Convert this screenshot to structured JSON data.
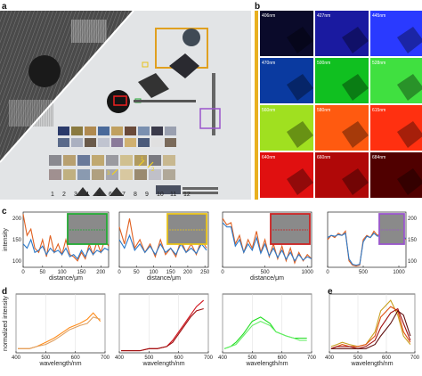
{
  "panel_labels": {
    "a": "a",
    "b": "b",
    "c": "c",
    "d": "d",
    "e": "e"
  },
  "panel_a": {
    "chart_numbers": [
      "1",
      "2",
      "3",
      "4",
      "5",
      "6",
      "7",
      "8",
      "9",
      "10",
      "11",
      "12"
    ],
    "arrow_labels": [
      "1",
      "2",
      "3"
    ]
  },
  "panel_b": {
    "wavelength_labels": [
      "406nm",
      "427nm",
      "445nm",
      "470nm",
      "500nm",
      "528nm",
      "560nm",
      "580nm",
      "615nm",
      "640nm",
      "660nm",
      "684nm"
    ],
    "tile_colors": [
      "#0a0a2a",
      "#1a1aa0",
      "#2a3aff",
      "#0a3aa0",
      "#10c020",
      "#40e040",
      "#a0e020",
      "#ff5a10",
      "#ff3010",
      "#e01010",
      "#b00808",
      "#500000"
    ]
  },
  "panel_c": {
    "ylabel": "intensity",
    "xlabel": "distance/μm",
    "plots": [
      {
        "border_color": "#22aa33",
        "xticks": [
          "0",
          "50",
          "100",
          "150",
          "200"
        ],
        "yticks": [
          "100",
          "150",
          "200"
        ],
        "show_ylabel": true
      },
      {
        "border_color": "#e8c21a",
        "xticks": [
          "0",
          "50",
          "100",
          "150",
          "200",
          "250"
        ],
        "yticks": [],
        "show_ylabel": false
      },
      {
        "border_color": "#cc2222",
        "xticks": [
          "0",
          "500",
          "1000"
        ],
        "yticks": [],
        "show_ylabel": false
      },
      {
        "border_color": "#9955cc",
        "xticks": [
          "0",
          "500",
          "1000"
        ],
        "yticks": [
          "100",
          "150",
          "200"
        ],
        "show_ylabel": false
      }
    ]
  },
  "panel_d": {
    "ylabel": "normalized intensity",
    "xlabel": "wavelength/nm",
    "plots": [
      {
        "color": "#ff8c1a",
        "xticks": [
          "400",
          "500",
          "600",
          "700"
        ],
        "show_ylabel": true
      },
      {
        "color": "#d0101a",
        "xticks": [
          "400",
          "500",
          "600",
          "700"
        ],
        "show_ylabel": false
      },
      {
        "color": "#22dd22",
        "xticks": [
          "400",
          "500",
          "600",
          "700"
        ],
        "show_ylabel": false
      }
    ]
  },
  "panel_e": {
    "xlabel": "wavelength/nm",
    "xticks": [
      "400",
      "500",
      "600",
      "700"
    ],
    "series_colors": [
      "#c8a020",
      "#e05010",
      "#a01010",
      "#601010"
    ]
  },
  "chart_data": [
    {
      "type": "line",
      "ylabel": "intensity",
      "xlabel": "distance/μm",
      "xlim": [
        0,
        220
      ],
      "ylim": [
        85,
        215
      ],
      "series": [
        {
          "color": "#e06020",
          "x": [
            0,
            10,
            20,
            30,
            40,
            50,
            60,
            70,
            80,
            90,
            100,
            110,
            120,
            130,
            140,
            150,
            160,
            170,
            180,
            190,
            200,
            210,
            220
          ],
          "values": [
            210,
            160,
            175,
            130,
            120,
            150,
            110,
            160,
            120,
            140,
            115,
            150,
            115,
            110,
            100,
            120,
            105,
            140,
            115,
            145,
            120,
            150,
            135
          ]
        },
        {
          "color": "#2a78c8",
          "x": [
            0,
            10,
            20,
            30,
            40,
            50,
            60,
            70,
            80,
            90,
            100,
            110,
            120,
            130,
            140,
            150,
            160,
            170,
            180,
            190,
            200,
            210,
            220
          ],
          "values": [
            140,
            130,
            150,
            120,
            125,
            135,
            115,
            130,
            120,
            125,
            115,
            130,
            110,
            115,
            105,
            125,
            110,
            130,
            115,
            125,
            120,
            130,
            125
          ]
        }
      ]
    },
    {
      "type": "line",
      "xlabel": "distance/μm",
      "xlim": [
        0,
        260
      ],
      "ylim": [
        85,
        215
      ],
      "series": [
        {
          "color": "#e06020",
          "x": [
            0,
            15,
            30,
            45,
            60,
            75,
            90,
            105,
            120,
            135,
            150,
            165,
            180,
            195,
            210,
            225,
            240,
            255
          ],
          "values": [
            180,
            140,
            200,
            130,
            150,
            120,
            140,
            110,
            150,
            115,
            130,
            110,
            150,
            120,
            140,
            115,
            150,
            130
          ]
        },
        {
          "color": "#2a78c8",
          "x": [
            0,
            15,
            30,
            45,
            60,
            75,
            90,
            105,
            120,
            135,
            150,
            165,
            180,
            195,
            210,
            225,
            240,
            255
          ],
          "values": [
            150,
            130,
            160,
            125,
            140,
            120,
            135,
            115,
            140,
            120,
            130,
            115,
            140,
            120,
            130,
            118,
            140,
            125
          ]
        }
      ]
    },
    {
      "type": "line",
      "xlabel": "distance/μm",
      "xlim": [
        0,
        1050
      ],
      "ylim": [
        85,
        215
      ],
      "series": [
        {
          "color": "#e06020",
          "x": [
            0,
            50,
            100,
            150,
            200,
            250,
            300,
            350,
            400,
            450,
            500,
            550,
            600,
            650,
            700,
            750,
            800,
            850,
            900,
            950,
            1000,
            1050
          ],
          "values": [
            200,
            185,
            190,
            140,
            160,
            120,
            150,
            130,
            170,
            120,
            150,
            110,
            140,
            105,
            135,
            100,
            130,
            95,
            120,
            100,
            115,
            105
          ]
        },
        {
          "color": "#2a78c8",
          "x": [
            0,
            50,
            100,
            150,
            200,
            250,
            300,
            350,
            400,
            450,
            500,
            550,
            600,
            650,
            700,
            750,
            800,
            850,
            900,
            950,
            1000,
            1050
          ],
          "values": [
            190,
            180,
            180,
            135,
            150,
            120,
            140,
            125,
            155,
            118,
            140,
            112,
            130,
            108,
            125,
            104,
            120,
            100,
            115,
            102,
            110,
            105
          ]
        }
      ]
    },
    {
      "type": "line",
      "xlim": [
        0,
        1100
      ],
      "ylim": [
        85,
        215
      ],
      "series": [
        {
          "color": "#e06020",
          "x": [
            0,
            50,
            100,
            150,
            200,
            250,
            300,
            350,
            400,
            450,
            500,
            550,
            600,
            650,
            700,
            750,
            800,
            850,
            900,
            950,
            1000,
            1050,
            1100
          ],
          "values": [
            150,
            160,
            155,
            165,
            160,
            170,
            100,
            90,
            88,
            90,
            150,
            160,
            155,
            170,
            160,
            165,
            155,
            170,
            160,
            165,
            155,
            160,
            150
          ]
        },
        {
          "color": "#2a78c8",
          "x": [
            0,
            50,
            100,
            150,
            200,
            250,
            300,
            350,
            400,
            450,
            500,
            550,
            600,
            650,
            700,
            750,
            800,
            850,
            900,
            950,
            1000,
            1050,
            1100
          ],
          "values": [
            155,
            160,
            158,
            162,
            160,
            165,
            105,
            92,
            90,
            92,
            145,
            158,
            155,
            165,
            158,
            160,
            155,
            165,
            158,
            160,
            155,
            158,
            152
          ]
        }
      ]
    },
    {
      "type": "line",
      "ylabel": "normalized intensity",
      "xlabel": "wavelength/nm",
      "xlim": [
        400,
        700
      ],
      "ylim": [
        0,
        0.28
      ],
      "series": [
        {
          "color": "#ff8c1a",
          "x": [
            406,
            427,
            445,
            470,
            500,
            528,
            560,
            580,
            615,
            640,
            660,
            684
          ],
          "values": [
            0.02,
            0.02,
            0.02,
            0.03,
            0.05,
            0.07,
            0.1,
            0.12,
            0.14,
            0.16,
            0.19,
            0.15
          ]
        },
        {
          "color": "#e0a060",
          "x": [
            406,
            427,
            445,
            470,
            500,
            528,
            560,
            580,
            615,
            640,
            660,
            684
          ],
          "values": [
            0.02,
            0.02,
            0.02,
            0.03,
            0.04,
            0.06,
            0.09,
            0.11,
            0.13,
            0.14,
            0.17,
            0.16
          ]
        }
      ]
    },
    {
      "type": "line",
      "xlabel": "wavelength/nm",
      "xlim": [
        400,
        700
      ],
      "ylim": [
        0,
        0.28
      ],
      "series": [
        {
          "color": "#d0101a",
          "x": [
            406,
            427,
            445,
            470,
            500,
            528,
            560,
            580,
            615,
            640,
            660,
            684
          ],
          "values": [
            0.01,
            0.01,
            0.01,
            0.01,
            0.02,
            0.02,
            0.03,
            0.06,
            0.13,
            0.18,
            0.22,
            0.25
          ]
        },
        {
          "color": "#a01010",
          "x": [
            406,
            427,
            445,
            470,
            500,
            528,
            560,
            580,
            615,
            640,
            660,
            684
          ],
          "values": [
            0.01,
            0.01,
            0.01,
            0.01,
            0.02,
            0.02,
            0.03,
            0.05,
            0.12,
            0.17,
            0.2,
            0.21
          ]
        }
      ]
    },
    {
      "type": "line",
      "xlabel": "wavelength/nm",
      "xlim": [
        400,
        700
      ],
      "ylim": [
        0,
        0.28
      ],
      "series": [
        {
          "color": "#22dd22",
          "x": [
            406,
            427,
            445,
            470,
            500,
            528,
            560,
            580,
            615,
            640,
            660,
            684
          ],
          "values": [
            0.02,
            0.03,
            0.05,
            0.09,
            0.15,
            0.17,
            0.14,
            0.1,
            0.08,
            0.07,
            0.07,
            0.07
          ]
        },
        {
          "color": "#66ee66",
          "x": [
            406,
            427,
            445,
            470,
            500,
            528,
            560,
            580,
            615,
            640,
            660,
            684
          ],
          "values": [
            0.02,
            0.03,
            0.04,
            0.08,
            0.13,
            0.15,
            0.13,
            0.1,
            0.08,
            0.07,
            0.06,
            0.06
          ]
        }
      ]
    },
    {
      "type": "line",
      "xlabel": "wavelength/nm",
      "xlim": [
        400,
        700
      ],
      "ylim": [
        0,
        0.28
      ],
      "series": [
        {
          "color": "#c8a020",
          "x": [
            406,
            427,
            445,
            470,
            500,
            528,
            560,
            580,
            615,
            640,
            660,
            684
          ],
          "values": [
            0.03,
            0.04,
            0.05,
            0.04,
            0.03,
            0.04,
            0.1,
            0.2,
            0.25,
            0.18,
            0.08,
            0.04
          ]
        },
        {
          "color": "#e05010",
          "x": [
            406,
            427,
            445,
            470,
            500,
            528,
            560,
            580,
            615,
            640,
            660,
            684
          ],
          "values": [
            0.02,
            0.03,
            0.04,
            0.03,
            0.03,
            0.04,
            0.08,
            0.17,
            0.22,
            0.2,
            0.1,
            0.05
          ]
        },
        {
          "color": "#a01010",
          "x": [
            406,
            427,
            445,
            470,
            500,
            528,
            560,
            580,
            615,
            640,
            660,
            684
          ],
          "values": [
            0.02,
            0.03,
            0.03,
            0.03,
            0.02,
            0.03,
            0.06,
            0.12,
            0.19,
            0.21,
            0.14,
            0.06
          ]
        },
        {
          "color": "#601010",
          "x": [
            406,
            427,
            445,
            470,
            500,
            528,
            560,
            580,
            615,
            640,
            660,
            684
          ],
          "values": [
            0.02,
            0.02,
            0.02,
            0.02,
            0.02,
            0.02,
            0.04,
            0.08,
            0.14,
            0.2,
            0.18,
            0.08
          ]
        }
      ]
    }
  ]
}
